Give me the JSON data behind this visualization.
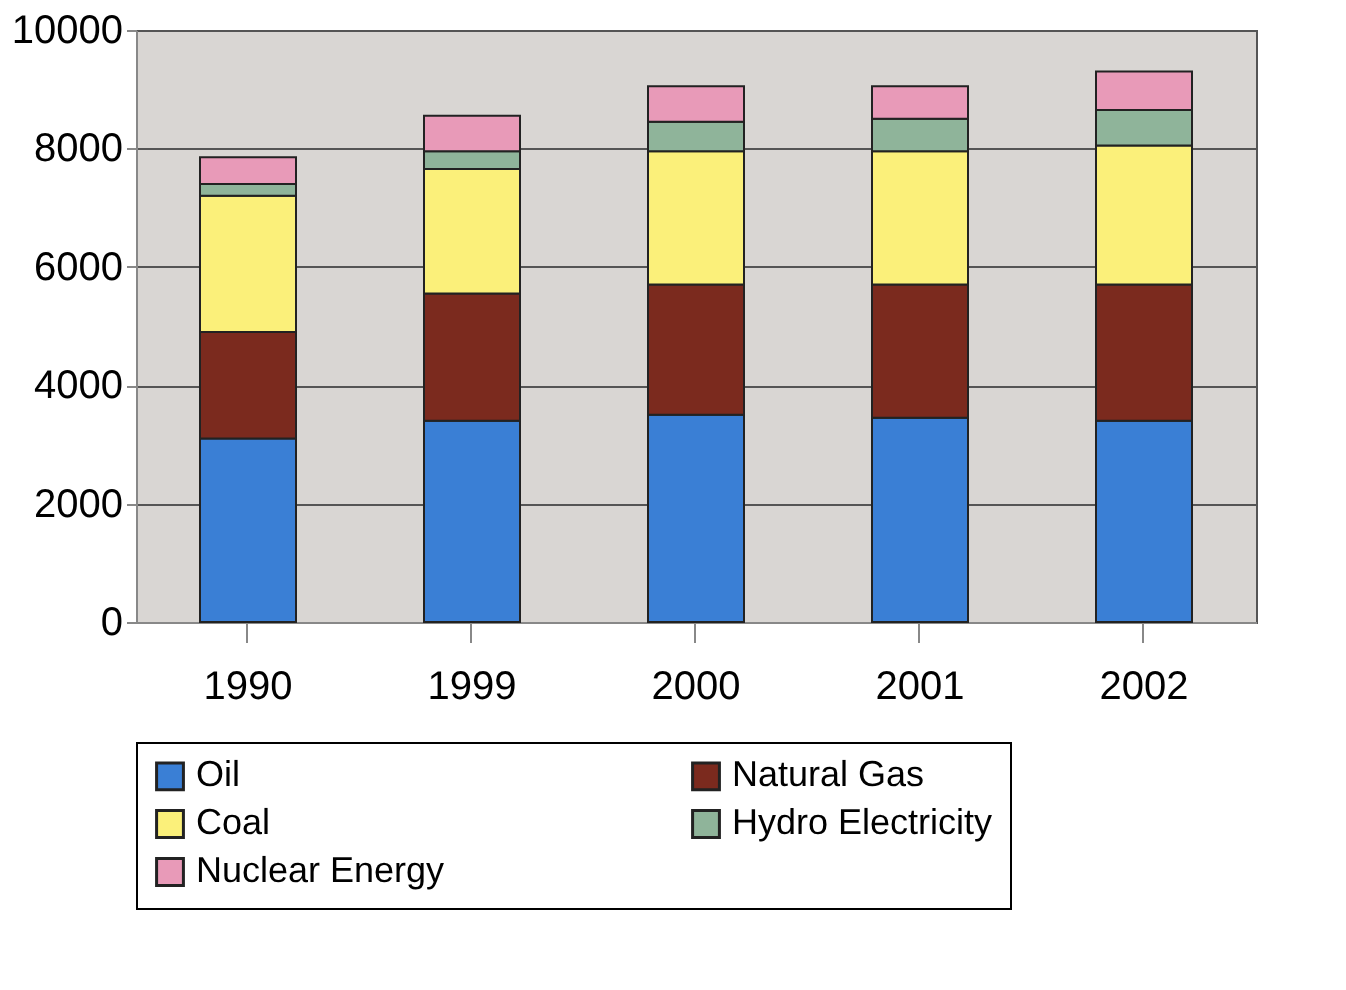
{
  "chart_data": {
    "type": "bar",
    "stacked": true,
    "categories": [
      "1990",
      "1999",
      "2000",
      "2001",
      "2002"
    ],
    "series": [
      {
        "name": "Oil",
        "color": "#3a7fd5",
        "values": [
          3100,
          3400,
          3500,
          3450,
          3400
        ]
      },
      {
        "name": "Natural Gas",
        "color": "#7b2a1e",
        "values": [
          1800,
          2150,
          2200,
          2250,
          2300
        ]
      },
      {
        "name": "Coal",
        "color": "#fbf07a",
        "values": [
          2300,
          2100,
          2250,
          2250,
          2350
        ]
      },
      {
        "name": "Hydro Electricity",
        "color": "#8fb49a",
        "values": [
          200,
          300,
          500,
          550,
          600
        ]
      },
      {
        "name": "Nuclear Energy",
        "color": "#e89ab8",
        "values": [
          450,
          600,
          600,
          550,
          650
        ]
      }
    ],
    "ylim": [
      0,
      10000
    ],
    "yticks": [
      0,
      2000,
      4000,
      6000,
      8000,
      10000
    ],
    "grid": "y",
    "legend": "bottom"
  }
}
